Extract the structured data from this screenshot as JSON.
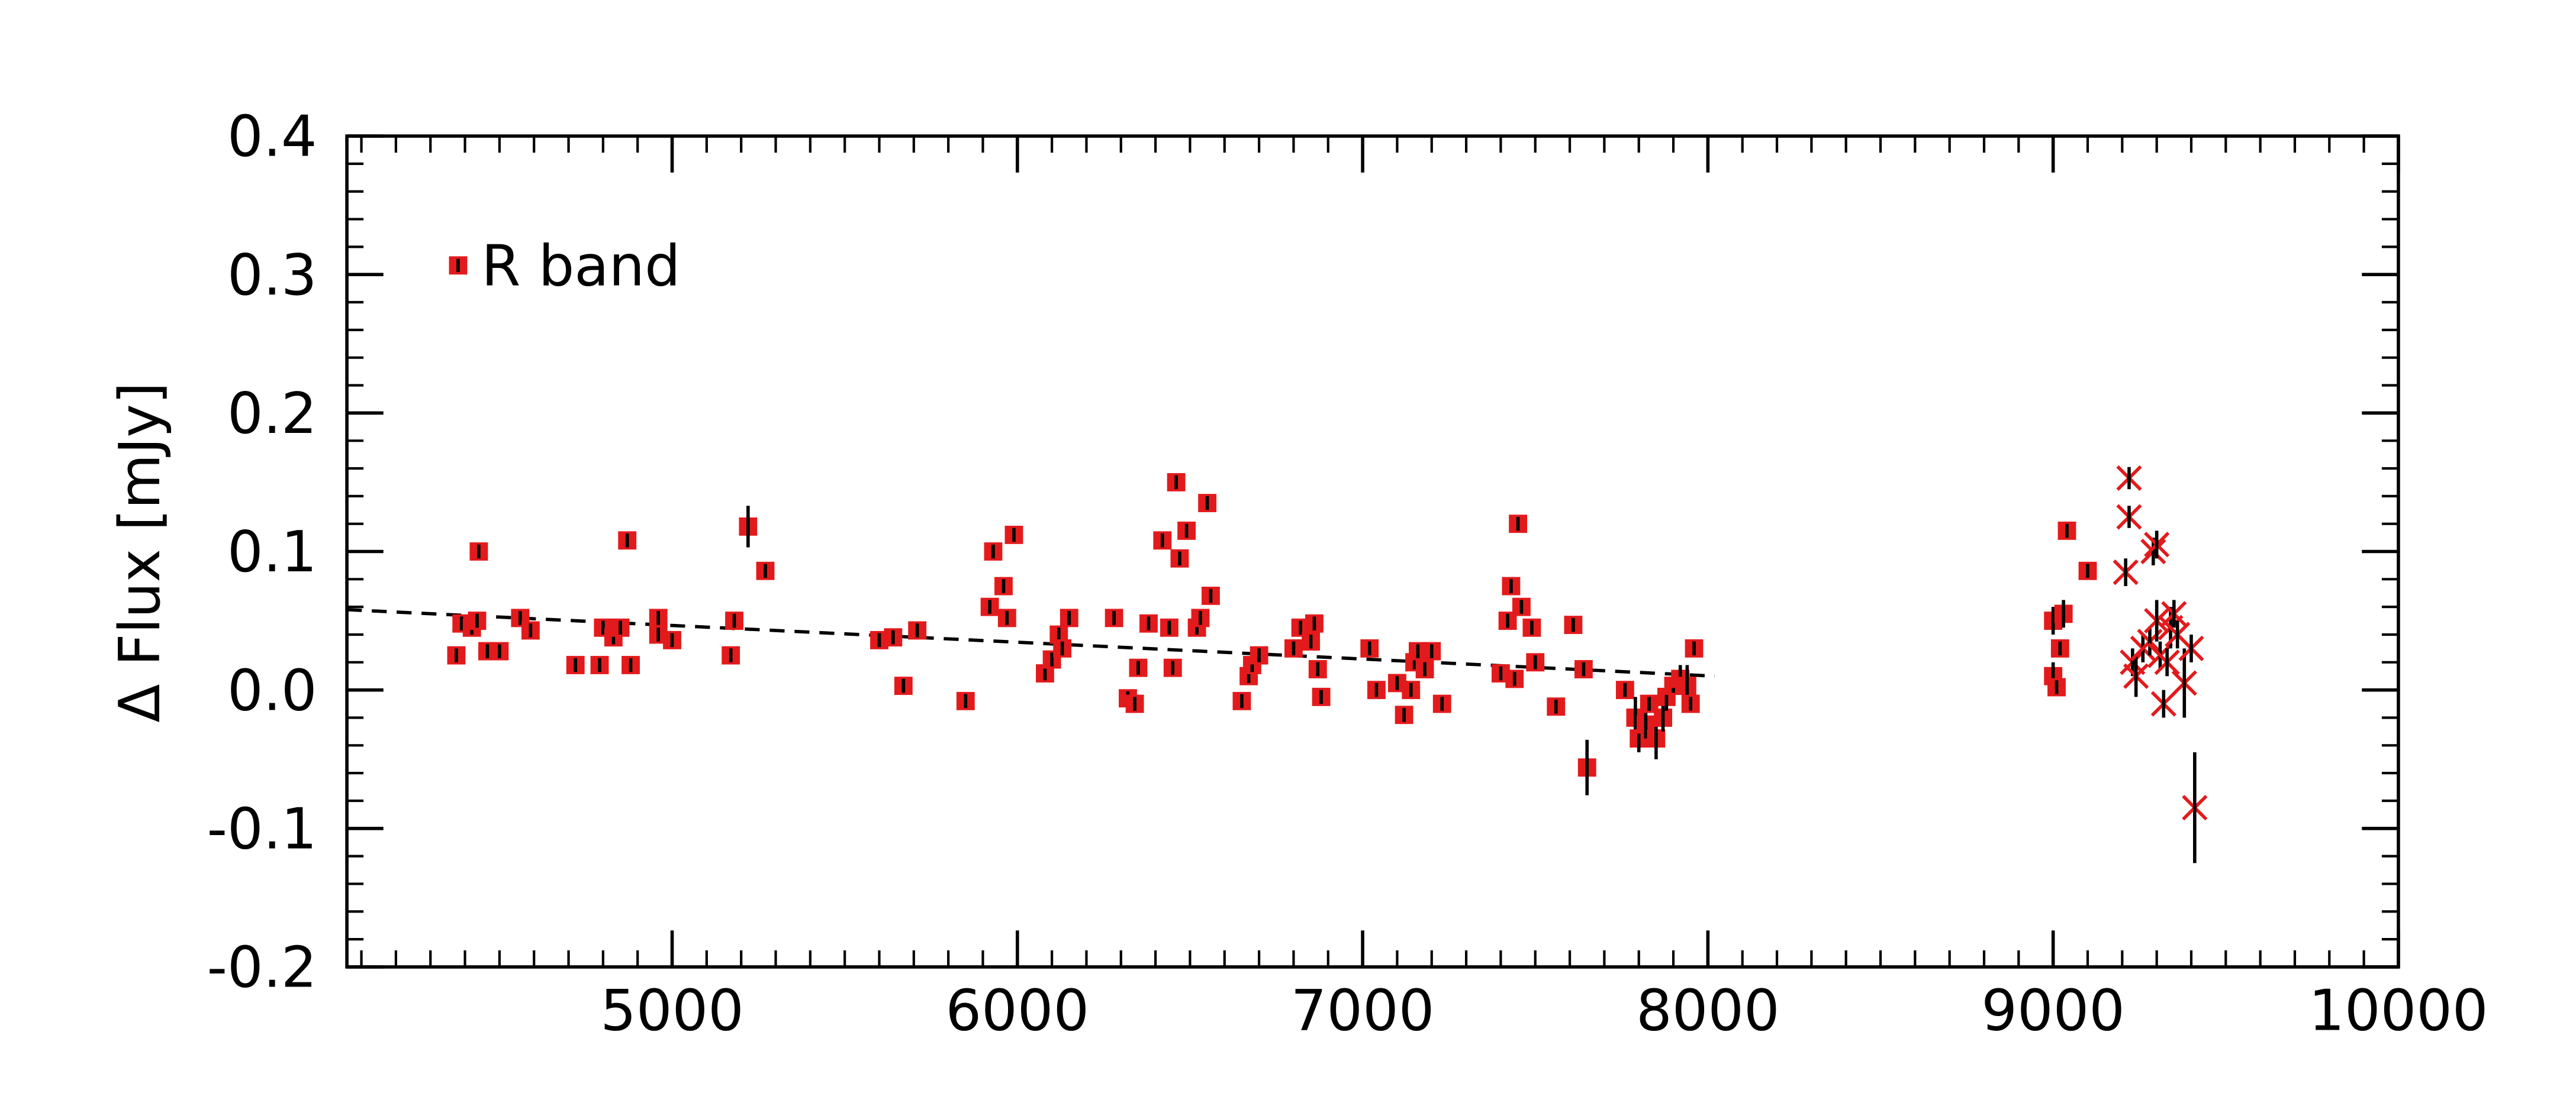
{
  "chart_data": {
    "type": "scatter",
    "ylabel": "Δ Flux [mJy]",
    "xlim": [
      4058,
      10000
    ],
    "ylim": [
      -0.2,
      0.4
    ],
    "xticks": [
      5000,
      6000,
      7000,
      8000,
      9000,
      10000
    ],
    "yticks": [
      {
        "value": -0.2,
        "label": "-0.2"
      },
      -0.1,
      {
        "value": 0,
        "label": "0.0"
      },
      0.1,
      0.2,
      0.3,
      0.4
    ],
    "legend": "upper left",
    "series": [
      {
        "name": "R band",
        "marker": "square",
        "color": "#e31a1c",
        "x": [
          4375,
          4390,
          4420,
          4435,
          4440,
          4465,
          4500,
          4560,
          4590,
          4720,
          4790,
          4800,
          4830,
          4850,
          4870,
          4880,
          4960,
          4960,
          5000,
          5170,
          5180,
          5220,
          5270,
          5600,
          5640,
          5670,
          5710,
          5850,
          5920,
          5930,
          5960,
          5970,
          5990,
          6080,
          6100,
          6120,
          6130,
          6150,
          6280,
          6320,
          6340,
          6350,
          6380,
          6420,
          6440,
          6450,
          6460,
          6470,
          6490,
          6520,
          6530,
          6550,
          6560,
          6650,
          6670,
          6680,
          6700,
          6800,
          6820,
          6850,
          6860,
          6870,
          6880,
          7020,
          7040,
          7100,
          7120,
          7140,
          7150,
          7160,
          7180,
          7200,
          7230,
          7400,
          7420,
          7430,
          7440,
          7450,
          7460,
          7490,
          7500,
          7560,
          7610,
          7640,
          7650,
          7760,
          7790,
          7800,
          7820,
          7830,
          7850,
          7870,
          7880,
          7900,
          7920,
          7940,
          7950,
          7960,
          9000,
          9000,
          9010,
          9020,
          9030,
          9040,
          9100
        ],
        "values": [
          0.025,
          0.048,
          0.045,
          0.05,
          0.1,
          0.028,
          0.028,
          0.052,
          0.043,
          0.018,
          0.018,
          0.045,
          0.038,
          0.045,
          0.108,
          0.018,
          0.052,
          0.04,
          0.036,
          0.025,
          0.05,
          0.118,
          0.086,
          0.036,
          0.038,
          0.003,
          0.043,
          -0.008,
          0.06,
          0.1,
          0.075,
          0.052,
          0.112,
          0.012,
          0.022,
          0.04,
          0.03,
          0.052,
          0.052,
          -0.006,
          -0.01,
          0.016,
          0.048,
          0.108,
          0.045,
          0.016,
          0.15,
          0.095,
          0.115,
          0.045,
          0.052,
          0.135,
          0.068,
          -0.008,
          0.01,
          0.018,
          0.025,
          0.03,
          0.045,
          0.035,
          0.048,
          0.015,
          -0.005,
          0.03,
          0.0,
          0.005,
          -0.018,
          0.0,
          0.02,
          0.028,
          0.015,
          0.028,
          -0.01,
          0.012,
          0.05,
          0.075,
          0.008,
          0.12,
          0.06,
          0.045,
          0.02,
          -0.012,
          0.047,
          0.015,
          -0.056,
          0.0,
          -0.02,
          -0.035,
          -0.025,
          -0.01,
          -0.035,
          -0.02,
          -0.005,
          0.003,
          0.008,
          0.003,
          -0.01,
          0.03,
          0.01,
          0.05,
          0.002,
          0.03,
          0.055,
          0.115,
          0.086
        ],
        "errors": [
          0.005,
          0.005,
          0.005,
          0.005,
          0.005,
          0.005,
          0.005,
          0.005,
          0.005,
          0.005,
          0.005,
          0.005,
          0.005,
          0.005,
          0.005,
          0.005,
          0.005,
          0.005,
          0.005,
          0.005,
          0.005,
          0.015,
          0.005,
          0.005,
          0.005,
          0.005,
          0.005,
          0.005,
          0.005,
          0.005,
          0.005,
          0.005,
          0.005,
          0.005,
          0.005,
          0.005,
          0.005,
          0.005,
          0.005,
          0.005,
          0.005,
          0.005,
          0.005,
          0.005,
          0.005,
          0.005,
          0.005,
          0.005,
          0.005,
          0.005,
          0.005,
          0.005,
          0.005,
          0.005,
          0.005,
          0.005,
          0.005,
          0.005,
          0.005,
          0.005,
          0.005,
          0.005,
          0.005,
          0.005,
          0.005,
          0.005,
          0.005,
          0.005,
          0.005,
          0.005,
          0.005,
          0.005,
          0.005,
          0.005,
          0.005,
          0.005,
          0.005,
          0.005,
          0.005,
          0.005,
          0.005,
          0.005,
          0.005,
          0.005,
          0.02,
          0.005,
          0.015,
          0.01,
          0.01,
          0.005,
          0.015,
          0.01,
          0.01,
          0.005,
          0.01,
          0.015,
          0.005,
          0.005,
          0.01,
          0.01,
          0.005,
          0.005,
          0.01,
          0.005,
          0.005
        ]
      },
      {
        "marker": "x",
        "color": "#e31a1c",
        "x": [
          9220,
          9220,
          9210,
          9230,
          9240,
          9260,
          9280,
          9290,
          9300,
          9300,
          9310,
          9320,
          9330,
          9340,
          9350,
          9360,
          9380,
          9400,
          9410
        ],
        "values": [
          0.153,
          0.125,
          0.085,
          0.02,
          0.01,
          0.03,
          0.035,
          0.1,
          0.105,
          0.05,
          0.025,
          -0.01,
          0.02,
          0.045,
          0.055,
          0.04,
          0.005,
          0.03,
          -0.085
        ],
        "errors": [
          0.008,
          0.008,
          0.01,
          0.01,
          0.015,
          0.01,
          0.01,
          0.01,
          0.01,
          0.015,
          0.01,
          0.01,
          0.01,
          0.015,
          0.01,
          0.01,
          0.025,
          0.01,
          0.04
        ]
      }
    ],
    "trend": {
      "color": "#000000",
      "x": [
        4058,
        8020
      ],
      "values": [
        0.058,
        0.01
      ]
    }
  }
}
